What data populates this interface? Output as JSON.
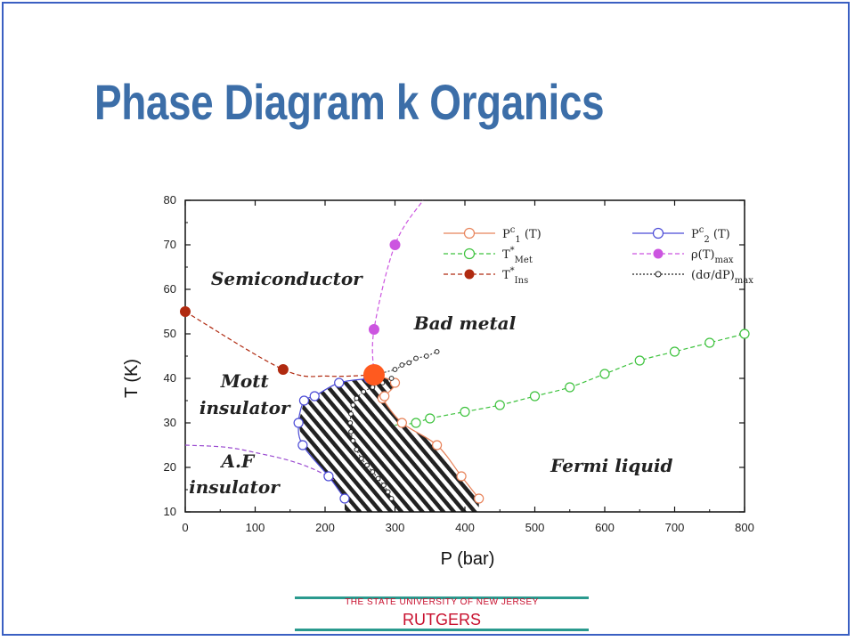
{
  "slide": {
    "title": "Phase Diagram k Organics",
    "footer_tagline": "THE STATE UNIVERSITY OF NEW JERSEY",
    "footer_name": "RUTGERS"
  },
  "chart_data": {
    "type": "scatter",
    "xlabel": "P (bar)",
    "ylabel": "T (K)",
    "xlim": [
      0,
      800
    ],
    "ylim": [
      10,
      80
    ],
    "xticks": [
      0,
      100,
      200,
      300,
      400,
      500,
      600,
      700,
      800
    ],
    "yticks": [
      10,
      20,
      30,
      40,
      50,
      60,
      70,
      80
    ],
    "critical_point": {
      "x": 270,
      "y": 40.8,
      "color": "#ff5a1f"
    },
    "series": [
      {
        "key": "pc1",
        "label_base": "P",
        "label_sup": "c",
        "label_sub": "1",
        "label_tail": " (T)",
        "color": "#e8835a",
        "marker": "open-circle",
        "line": "solid",
        "points": [
          [
            300,
            39
          ],
          [
            282,
            35.5
          ],
          [
            285,
            36
          ],
          [
            310,
            30
          ],
          [
            360,
            25
          ],
          [
            395,
            18
          ],
          [
            420,
            13
          ]
        ]
      },
      {
        "key": "pc2",
        "label_base": "P",
        "label_sup": "c",
        "label_sub": "2",
        "label_tail": " (T)",
        "color": "#4b4bd6",
        "marker": "open-circle",
        "line": "solid",
        "points": [
          [
            262,
            40
          ],
          [
            220,
            39
          ],
          [
            185,
            36
          ],
          [
            170,
            35
          ],
          [
            162,
            30
          ],
          [
            168,
            25
          ],
          [
            205,
            18
          ],
          [
            228,
            13
          ]
        ]
      },
      {
        "key": "tmet",
        "label_base": "T",
        "label_sup": "*",
        "label_sub": "Met",
        "label_tail": "",
        "color": "#3dc23d",
        "marker": "open-circle",
        "line": "dashed",
        "points": [
          [
            330,
            30
          ],
          [
            350,
            31
          ],
          [
            400,
            32.5
          ],
          [
            450,
            34
          ],
          [
            500,
            36
          ],
          [
            550,
            38
          ],
          [
            600,
            41
          ],
          [
            650,
            44
          ],
          [
            700,
            46
          ],
          [
            750,
            48
          ],
          [
            800,
            50
          ]
        ]
      },
      {
        "key": "rhomax",
        "label_base": "ρ(T)",
        "label_sup": "",
        "label_sub": "max",
        "label_tail": "",
        "color": "#cc55e0",
        "marker": "filled-circle",
        "line": "dashed",
        "points": [
          [
            270,
            51
          ],
          [
            300,
            70
          ]
        ]
      },
      {
        "key": "tins",
        "label_base": "T",
        "label_sup": "*",
        "label_sub": "Ins",
        "label_tail": "",
        "color": "#b02a10",
        "marker": "filled-circle",
        "line": "dashed",
        "points": [
          [
            0,
            55
          ],
          [
            140,
            42
          ]
        ]
      },
      {
        "key": "dsdp",
        "label_base": "(dσ/dP)",
        "label_sup": "",
        "label_sub": "max",
        "label_tail": "",
        "color": "#222222",
        "marker": "small-open-circle",
        "line": "dotted",
        "points": [
          [
            295,
            40
          ],
          [
            282,
            39
          ],
          [
            268,
            38
          ],
          [
            255,
            37
          ],
          [
            245,
            35.5
          ],
          [
            240,
            34
          ],
          [
            237,
            32
          ],
          [
            236,
            30
          ],
          [
            237,
            28
          ],
          [
            240,
            26
          ],
          [
            245,
            24
          ],
          [
            252,
            22
          ],
          [
            260,
            20.5
          ],
          [
            268,
            19
          ],
          [
            276,
            17.5
          ],
          [
            284,
            16
          ],
          [
            290,
            14.5
          ],
          [
            295,
            13
          ],
          [
            300,
            42
          ],
          [
            310,
            43
          ],
          [
            320,
            43.5
          ],
          [
            330,
            44.5
          ],
          [
            345,
            45
          ],
          [
            360,
            46
          ]
        ]
      }
    ],
    "af_boundary": {
      "color": "#9a4ad0",
      "points": [
        [
          0,
          25
        ],
        [
          60,
          24.5
        ],
        [
          110,
          23
        ],
        [
          150,
          21.5
        ],
        [
          185,
          19.5
        ],
        [
          215,
          17
        ]
      ]
    },
    "regions": [
      {
        "label": "Semiconductor",
        "x": 145,
        "y": 61
      },
      {
        "label": "Bad metal",
        "x": 400,
        "y": 51
      },
      {
        "label": "Mott",
        "x": 85,
        "y": 38
      },
      {
        "label": "insulator",
        "x": 85,
        "y": 32
      },
      {
        "label": "Fermi liquid",
        "x": 610,
        "y": 19
      },
      {
        "label": "A.F",
        "x": 75,
        "y": 20
      },
      {
        "label": "insulator",
        "x": 70,
        "y": 14.2
      }
    ]
  }
}
